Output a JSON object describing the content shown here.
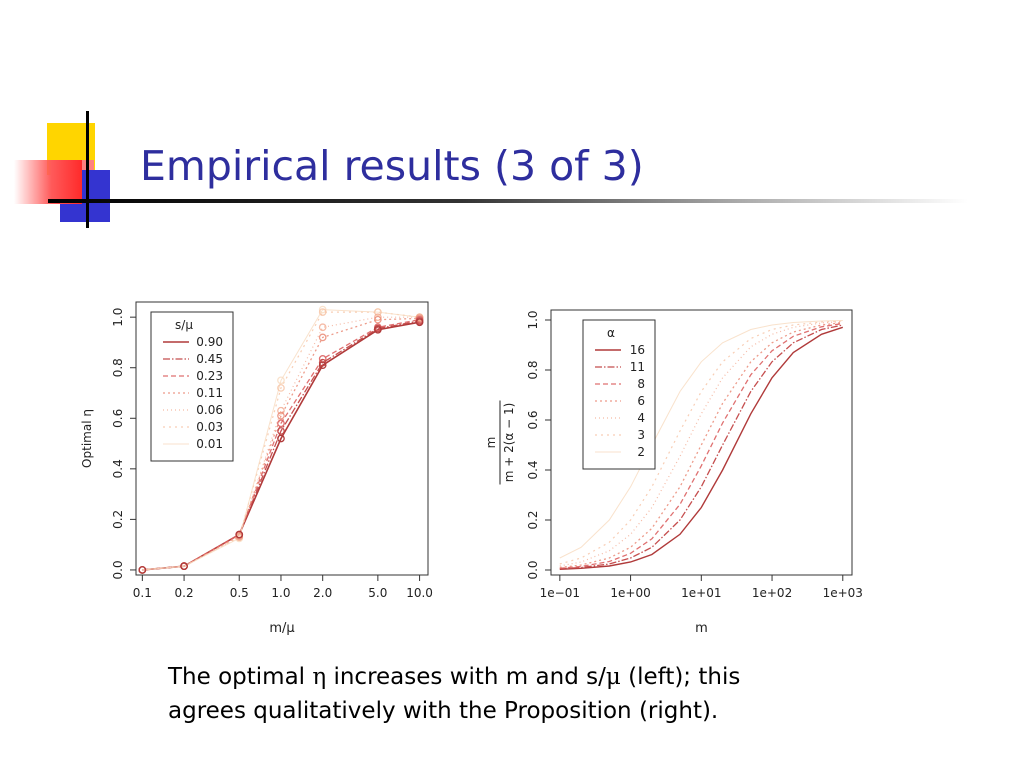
{
  "slide": {
    "title": "Empirical results (3 of 3)",
    "caption": {
      "line1": [
        "The optimal ",
        "η",
        " increases with m and s/",
        "μ",
        " (left); this"
      ],
      "line2": "agrees qualitatively with the Proposition (right)."
    },
    "colors": {
      "title": "#2e2e9e",
      "yellow": "#ffd500",
      "blue": "#3434d0",
      "red": "#ff3030"
    }
  },
  "chart_data": [
    {
      "type": "line",
      "xscale": "log",
      "x": [
        0.1,
        0.2,
        0.5,
        1.0,
        2.0,
        5.0,
        10.0
      ],
      "xtick_labels": [
        "0.1",
        "0.2",
        "0.5",
        "1.0",
        "2.0",
        "5.0",
        "10.0"
      ],
      "yticks": [
        0.0,
        0.2,
        0.4,
        0.6,
        0.8,
        1.0
      ],
      "ytick_labels": [
        "0.0",
        "0.2",
        "0.4",
        "0.6",
        "0.8",
        "1.0"
      ],
      "xlim": [
        0.09,
        11.5
      ],
      "ylim": [
        -0.02,
        1.06
      ],
      "xlabel": "m/μ",
      "ylabel": "Optimal η",
      "legend_title": "s/μ",
      "legend_position": "top-left",
      "markers": "circle",
      "series": [
        {
          "name": "0.90",
          "color": "#b03a3a",
          "dash": "",
          "width": 1.6,
          "opacity": 1.0,
          "values": [
            0.0,
            0.015,
            0.14,
            0.52,
            0.81,
            0.95,
            0.98
          ]
        },
        {
          "name": "0.45",
          "color": "#c24545",
          "dash": "7,2,1.5,2",
          "width": 1.3,
          "opacity": 0.95,
          "values": [
            0.0,
            0.015,
            0.14,
            0.55,
            0.82,
            0.955,
            0.985
          ]
        },
        {
          "name": "0.23",
          "color": "#dc6060",
          "dash": "5,3",
          "width": 1.3,
          "opacity": 0.9,
          "values": [
            0.0,
            0.015,
            0.14,
            0.58,
            0.835,
            0.96,
            0.99
          ]
        },
        {
          "name": "0.11",
          "color": "#ea8a76",
          "dash": "2,3",
          "width": 1.3,
          "opacity": 0.85,
          "values": [
            0.0,
            0.015,
            0.135,
            0.61,
            0.92,
            0.99,
            0.995
          ]
        },
        {
          "name": "0.06",
          "color": "#f2a98e",
          "dash": "1,3",
          "width": 1.2,
          "opacity": 0.8,
          "values": [
            0.0,
            0.015,
            0.13,
            0.63,
            0.96,
            1.0,
            1.0
          ]
        },
        {
          "name": "0.03",
          "color": "#f6c2a2",
          "dash": "2,4",
          "width": 1.2,
          "opacity": 0.8,
          "values": [
            0.0,
            0.015,
            0.13,
            0.72,
            1.02,
            1.02,
            1.0
          ]
        },
        {
          "name": "0.01",
          "color": "#f7dbbf",
          "dash": "",
          "width": 1.0,
          "opacity": 0.8,
          "values": [
            0.0,
            0.015,
            0.125,
            0.75,
            1.03,
            1.02,
            1.0
          ]
        }
      ]
    },
    {
      "type": "line",
      "xscale": "log",
      "xticks": [
        0.1,
        1,
        10,
        100,
        1000
      ],
      "xtick_labels": [
        "1e−01",
        "1e+00",
        "1e+01",
        "1e+02",
        "1e+03"
      ],
      "yticks": [
        0.0,
        0.2,
        0.4,
        0.6,
        0.8,
        1.0
      ],
      "ytick_labels": [
        "0.0",
        "0.2",
        "0.4",
        "0.6",
        "0.8",
        "1.0"
      ],
      "xlim": [
        0.075,
        1350
      ],
      "ylim": [
        -0.02,
        1.04
      ],
      "xlabel": "m",
      "ylabel_numerator": "m",
      "ylabel_denominator": "m + 2(α − 1)",
      "legend_title": "α",
      "legend_position": "top-left",
      "formula": "m / (m + 2(α − 1))",
      "x": [
        0.1,
        0.2,
        0.5,
        1,
        2,
        5,
        10,
        20,
        50,
        100,
        200,
        500,
        1000
      ],
      "series": [
        {
          "name": "16",
          "color": "#b03a3a",
          "dash": "",
          "width": 1.4,
          "opacity": 1.0,
          "values": [
            0.003,
            0.007,
            0.016,
            0.032,
            0.062,
            0.143,
            0.25,
            0.4,
            0.625,
            0.769,
            0.87,
            0.943,
            0.971
          ]
        },
        {
          "name": "11",
          "color": "#c24545",
          "dash": "7,2,1.5,2",
          "width": 1.3,
          "opacity": 0.95,
          "values": [
            0.005,
            0.01,
            0.024,
            0.048,
            0.091,
            0.2,
            0.333,
            0.5,
            0.714,
            0.833,
            0.909,
            0.962,
            0.98
          ]
        },
        {
          "name": "8",
          "color": "#dc6060",
          "dash": "5,3",
          "width": 1.3,
          "opacity": 0.9,
          "values": [
            0.007,
            0.014,
            0.034,
            0.067,
            0.125,
            0.263,
            0.417,
            0.588,
            0.781,
            0.877,
            0.935,
            0.973,
            0.986
          ]
        },
        {
          "name": "6",
          "color": "#ea8a76",
          "dash": "2,3",
          "width": 1.3,
          "opacity": 0.85,
          "values": [
            0.01,
            0.02,
            0.048,
            0.091,
            0.167,
            0.333,
            0.5,
            0.667,
            0.833,
            0.909,
            0.952,
            0.98,
            0.99
          ]
        },
        {
          "name": "4",
          "color": "#f2a98e",
          "dash": "1,3",
          "width": 1.2,
          "opacity": 0.8,
          "values": [
            0.016,
            0.032,
            0.077,
            0.143,
            0.25,
            0.455,
            0.625,
            0.769,
            0.893,
            0.943,
            0.971,
            0.988,
            0.994
          ]
        },
        {
          "name": "3",
          "color": "#f6c2a2",
          "dash": "2,4",
          "width": 1.2,
          "opacity": 0.8,
          "values": [
            0.024,
            0.048,
            0.111,
            0.2,
            0.333,
            0.556,
            0.714,
            0.833,
            0.926,
            0.962,
            0.98,
            0.992,
            0.996
          ]
        },
        {
          "name": "2",
          "color": "#f7dbbf",
          "dash": "",
          "width": 1.0,
          "opacity": 0.8,
          "values": [
            0.048,
            0.091,
            0.2,
            0.333,
            0.5,
            0.714,
            0.833,
            0.909,
            0.962,
            0.98,
            0.99,
            0.996,
            0.998
          ]
        }
      ]
    }
  ]
}
